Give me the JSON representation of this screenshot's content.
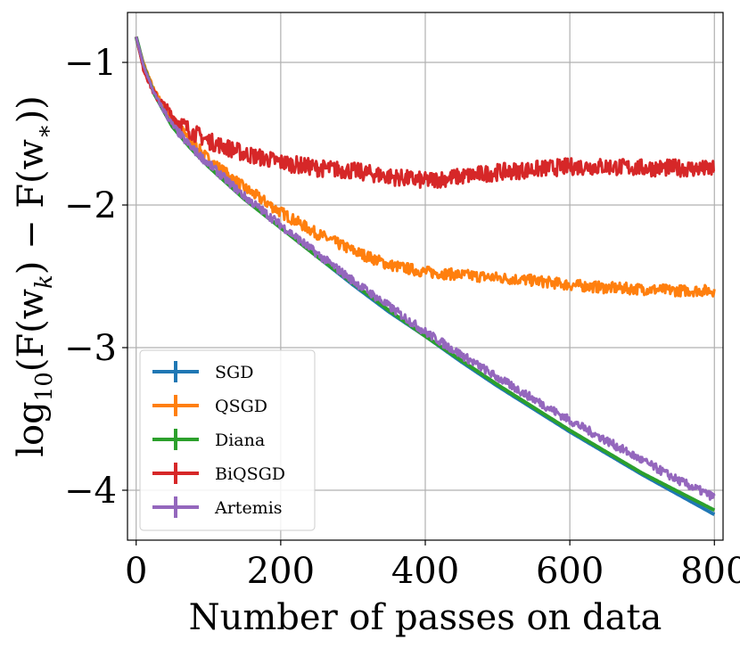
{
  "chart_data": {
    "type": "line",
    "title": "",
    "xlabel": "Number of passes on data",
    "ylabel": "log10(F(w_k) − F(w_*))",
    "ylabel_parts": {
      "fn": "log",
      "sub": "10",
      "body": "(F(w",
      "k": "k",
      "mid": ") − F(w",
      "star": "∗",
      "end": "))"
    },
    "xlim": [
      -12,
      812
    ],
    "ylim": [
      -4.35,
      -0.65
    ],
    "xticks": [
      0,
      200,
      400,
      600,
      800
    ],
    "xtick_labels": [
      "0",
      "200",
      "400",
      "600",
      "800"
    ],
    "yticks": [
      -1,
      -2,
      -3,
      -4
    ],
    "ytick_labels": [
      "−1",
      "−2",
      "−3",
      "−4"
    ],
    "grid": true,
    "legend_position": "lower-left",
    "x": [
      0,
      10,
      25,
      50,
      75,
      100,
      150,
      200,
      250,
      300,
      350,
      400,
      450,
      500,
      550,
      600,
      650,
      700,
      750,
      800
    ],
    "series": [
      {
        "name": "SGD",
        "color": "#1f77b4",
        "noise": 0.0,
        "values": [
          -0.82,
          -1.02,
          -1.22,
          -1.45,
          -1.6,
          -1.73,
          -1.96,
          -2.16,
          -2.36,
          -2.56,
          -2.75,
          -2.92,
          -3.1,
          -3.27,
          -3.43,
          -3.59,
          -3.74,
          -3.89,
          -4.03,
          -4.17
        ]
      },
      {
        "name": "QSGD",
        "color": "#ff7f0e",
        "noise": 0.04,
        "values": [
          -0.82,
          -1.0,
          -1.2,
          -1.4,
          -1.55,
          -1.68,
          -1.88,
          -2.05,
          -2.2,
          -2.32,
          -2.42,
          -2.47,
          -2.49,
          -2.51,
          -2.53,
          -2.56,
          -2.58,
          -2.59,
          -2.6,
          -2.6
        ]
      },
      {
        "name": "Diana",
        "color": "#2ca02c",
        "noise": 0.0,
        "values": [
          -0.82,
          -1.02,
          -1.22,
          -1.45,
          -1.6,
          -1.73,
          -1.96,
          -2.16,
          -2.36,
          -2.55,
          -2.74,
          -2.92,
          -3.09,
          -3.26,
          -3.42,
          -3.58,
          -3.73,
          -3.88,
          -4.01,
          -4.14
        ]
      },
      {
        "name": "BiQSGD",
        "color": "#d62728",
        "noise": 0.06,
        "values": [
          -0.82,
          -1.05,
          -1.22,
          -1.38,
          -1.48,
          -1.55,
          -1.64,
          -1.7,
          -1.74,
          -1.76,
          -1.8,
          -1.83,
          -1.8,
          -1.77,
          -1.75,
          -1.73,
          -1.73,
          -1.74,
          -1.74,
          -1.75
        ]
      },
      {
        "name": "Artemis",
        "color": "#9467bd",
        "noise": 0.03,
        "values": [
          -0.82,
          -1.02,
          -1.22,
          -1.44,
          -1.59,
          -1.71,
          -1.94,
          -2.14,
          -2.34,
          -2.53,
          -2.71,
          -2.89,
          -3.05,
          -3.21,
          -3.36,
          -3.51,
          -3.65,
          -3.79,
          -3.93,
          -4.05
        ]
      }
    ]
  }
}
